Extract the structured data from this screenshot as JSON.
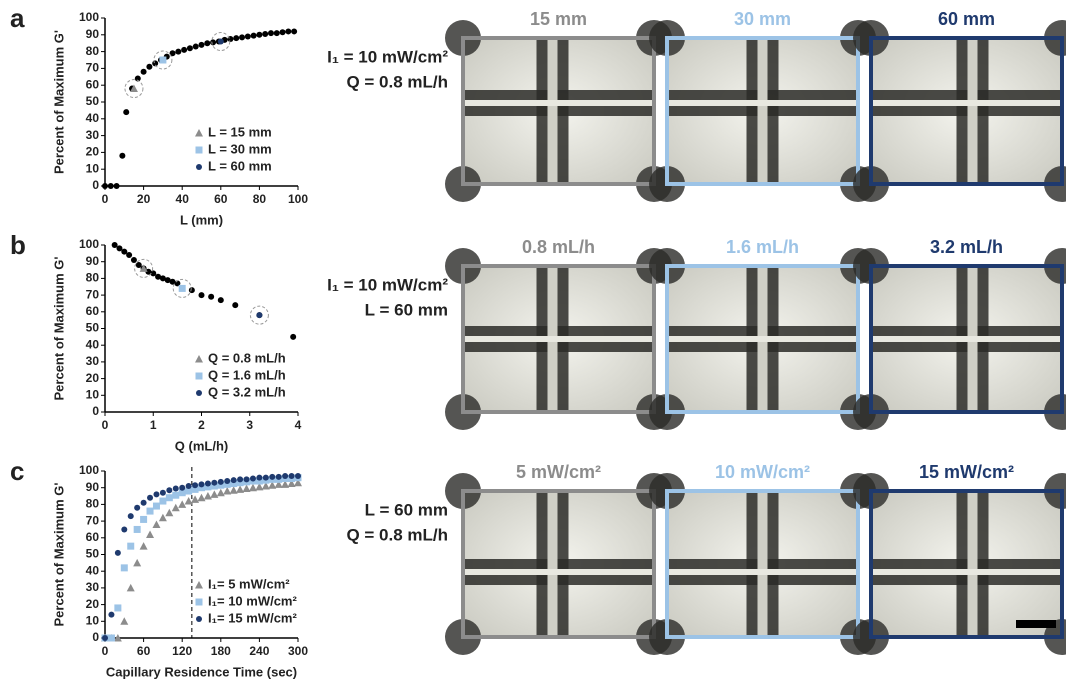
{
  "chart_data": [
    {
      "type": "scatter",
      "panel": "a",
      "xlabel": "L (mm)",
      "ylabel": "Percent of Maximum G'",
      "xlim": [
        0,
        100
      ],
      "ylim": [
        0,
        100
      ],
      "xticks": [
        0,
        20,
        40,
        60,
        80,
        100
      ],
      "yticks": [
        0,
        10,
        20,
        30,
        40,
        50,
        60,
        70,
        80,
        90,
        100
      ],
      "legend": "lower right",
      "series": [
        {
          "color": "#000000",
          "marker": "circle",
          "x": [
            0,
            3,
            6,
            9,
            11,
            14,
            17,
            20,
            23,
            26,
            29,
            32,
            35,
            38,
            41,
            44,
            47,
            50,
            53,
            56,
            59,
            62,
            65,
            68,
            71,
            74,
            77,
            80,
            83,
            86,
            89,
            92,
            95,
            98
          ],
          "values": [
            0,
            0,
            0,
            18,
            44,
            58,
            64,
            68,
            71,
            73,
            75,
            77,
            79,
            80,
            81,
            82,
            83,
            84,
            85,
            85.5,
            86,
            87,
            87.5,
            88,
            88.5,
            89,
            89.5,
            90,
            90.5,
            91,
            91,
            91.5,
            92,
            92
          ]
        },
        {
          "name": "L = 15 mm",
          "color": "#8c8c8c",
          "marker": "triangle",
          "x": [
            15
          ],
          "values": [
            58
          ]
        },
        {
          "name": "L = 30 mm",
          "color": "#9cc3e6",
          "marker": "square",
          "x": [
            30
          ],
          "values": [
            75
          ]
        },
        {
          "name": "L = 60 mm",
          "color": "#1f3a6e",
          "marker": "circle",
          "x": [
            60
          ],
          "values": [
            86
          ]
        }
      ]
    },
    {
      "type": "scatter",
      "panel": "b",
      "xlabel": "Q (mL/h)",
      "ylabel": "Percent of Maximum G'",
      "xlim": [
        0,
        4
      ],
      "ylim": [
        0,
        100
      ],
      "xticks": [
        0,
        1,
        2,
        3,
        4
      ],
      "yticks": [
        0,
        10,
        20,
        30,
        40,
        50,
        60,
        70,
        80,
        90,
        100
      ],
      "legend": "lower right",
      "series": [
        {
          "color": "#000000",
          "marker": "circle",
          "x": [
            0.2,
            0.3,
            0.4,
            0.5,
            0.6,
            0.7,
            0.8,
            0.9,
            1.0,
            1.1,
            1.2,
            1.3,
            1.4,
            1.5,
            1.6,
            1.8,
            2.0,
            2.2,
            2.4,
            2.7,
            3.2,
            3.9
          ],
          "values": [
            100,
            98,
            96,
            94,
            91,
            88,
            86,
            84,
            83,
            81,
            80,
            79,
            78,
            77,
            74,
            73,
            70,
            69,
            67,
            64,
            58,
            45
          ]
        },
        {
          "name": "Q = 0.8 mL/h",
          "color": "#8c8c8c",
          "marker": "triangle",
          "x": [
            0.8
          ],
          "values": [
            86
          ]
        },
        {
          "name": "Q = 1.6 mL/h",
          "color": "#9cc3e6",
          "marker": "square",
          "x": [
            1.6
          ],
          "values": [
            74
          ]
        },
        {
          "name": "Q = 3.2 mL/h",
          "color": "#1f3a6e",
          "marker": "circle",
          "x": [
            3.2
          ],
          "values": [
            58
          ]
        }
      ]
    },
    {
      "type": "scatter",
      "panel": "c",
      "xlabel": "Capillary Residence Time (sec)",
      "ylabel": "Percent of Maximum G'",
      "xlim": [
        0,
        300
      ],
      "ylim": [
        0,
        100
      ],
      "xticks": [
        0,
        60,
        120,
        180,
        240,
        300
      ],
      "yticks": [
        0,
        10,
        20,
        30,
        40,
        50,
        60,
        70,
        80,
        90,
        100
      ],
      "legend": "lower right",
      "vline": 135,
      "series": [
        {
          "name": "I₁= 5 mW/cm²",
          "color": "#8c8c8c",
          "marker": "triangle",
          "x": [
            0,
            10,
            20,
            30,
            40,
            50,
            60,
            70,
            80,
            90,
            100,
            110,
            120,
            130,
            140,
            150,
            160,
            170,
            180,
            190,
            200,
            210,
            220,
            230,
            240,
            250,
            260,
            270,
            280,
            290,
            300
          ],
          "values": [
            0,
            0,
            0,
            10,
            30,
            45,
            55,
            62,
            68,
            72,
            75,
            78,
            80,
            82,
            83,
            84,
            85,
            86,
            87,
            88,
            88.5,
            89,
            89.5,
            90,
            90.5,
            91,
            91.5,
            92,
            92,
            92.5,
            93
          ]
        },
        {
          "name": "I₁= 10 mW/cm²",
          "color": "#9cc3e6",
          "marker": "square",
          "x": [
            0,
            10,
            20,
            30,
            40,
            50,
            60,
            70,
            80,
            90,
            100,
            110,
            120,
            130,
            140,
            150,
            160,
            170,
            180,
            190,
            200,
            210,
            220,
            230,
            240,
            250,
            260,
            270,
            280,
            290,
            300
          ],
          "values": [
            0,
            0,
            18,
            42,
            55,
            65,
            71,
            76,
            79,
            82,
            84,
            85.5,
            87,
            88,
            89,
            90,
            90.5,
            91,
            91.5,
            92,
            92.5,
            93,
            93.5,
            94,
            94,
            94.5,
            95,
            95,
            95.5,
            95.5,
            96
          ]
        },
        {
          "name": "I₁= 15 mW/cm²",
          "color": "#1f3a6e",
          "marker": "circle",
          "x": [
            0,
            10,
            20,
            30,
            40,
            50,
            60,
            70,
            80,
            90,
            100,
            110,
            120,
            130,
            140,
            150,
            160,
            170,
            180,
            190,
            200,
            210,
            220,
            230,
            240,
            250,
            260,
            270,
            280,
            290,
            300
          ],
          "values": [
            0,
            14,
            51,
            65,
            73,
            78,
            81,
            84,
            86,
            87,
            88.5,
            89.5,
            90,
            91,
            91.5,
            92,
            92.5,
            93,
            93.5,
            94,
            94.5,
            95,
            95,
            95.5,
            96,
            96,
            96.5,
            96.5,
            97,
            97,
            97
          ]
        }
      ]
    }
  ],
  "panels": [
    {
      "conditions": [
        "I₁ = 10 mW/cm²",
        "Q = 0.8 mL/h"
      ],
      "images": [
        {
          "title": "15 mm",
          "color": "#8c8c8c"
        },
        {
          "title": "30 mm",
          "color": "#9cc3e6"
        },
        {
          "title": "60 mm",
          "color": "#1f3a6e"
        }
      ]
    },
    {
      "conditions": [
        "I₁ = 10 mW/cm²",
        "L = 60 mm"
      ],
      "images": [
        {
          "title": "0.8 mL/h",
          "color": "#8c8c8c"
        },
        {
          "title": "1.6 mL/h",
          "color": "#9cc3e6"
        },
        {
          "title": "3.2 mL/h",
          "color": "#1f3a6e"
        }
      ]
    },
    {
      "conditions": [
        "L = 60 mm",
        "Q = 0.8 mL/h"
      ],
      "images": [
        {
          "title": "5 mW/cm²",
          "color": "#8c8c8c"
        },
        {
          "title": "10 mW/cm²",
          "color": "#9cc3e6"
        },
        {
          "title": "15 mW/cm²",
          "color": "#1f3a6e"
        }
      ]
    }
  ]
}
